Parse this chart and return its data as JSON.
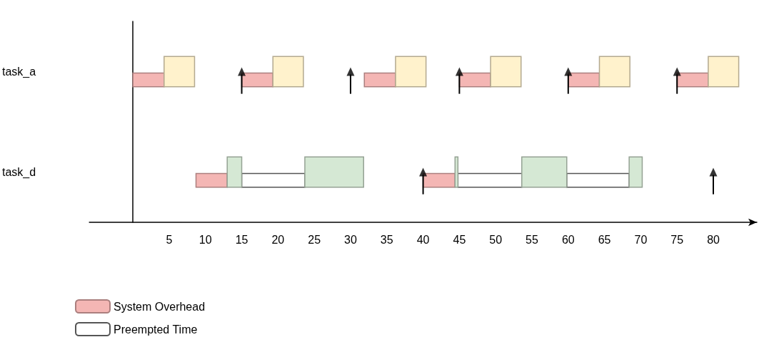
{
  "chart_data": {
    "type": "bar",
    "orientation": "horizontal",
    "categories": [
      "task_a",
      "task_d"
    ],
    "series": [
      {
        "name": "System Overhead",
        "color": "#f4b6b4",
        "base": [
          0,
          8.7
        ],
        "values": [
          4.3,
          4.3
        ]
      },
      {
        "color": "#f4b6b4",
        "base": [
          15,
          40
        ],
        "values": [
          4.3,
          4.4
        ]
      },
      {
        "color": "#f4b6b4",
        "base": [
          31.9,
          null
        ],
        "values": [
          4.3,
          null
        ]
      },
      {
        "color": "#f4b6b4",
        "base": [
          45,
          null
        ],
        "values": [
          4.3,
          null
        ]
      },
      {
        "color": "#f4b6b4",
        "base": [
          60,
          null
        ],
        "values": [
          4.3,
          null
        ]
      },
      {
        "color": "#f4b6b4",
        "base": [
          75,
          null
        ],
        "values": [
          4.3,
          null
        ]
      },
      {
        "name": "Preempted Time",
        "color": "#ffffff",
        "base": [
          null,
          15
        ],
        "values": [
          null,
          8.7
        ]
      },
      {
        "color": "#ffffff",
        "base": [
          null,
          44.8
        ],
        "values": [
          null,
          8.8
        ]
      },
      {
        "color": "#ffffff",
        "base": [
          null,
          59.8
        ],
        "values": [
          null,
          8.6
        ]
      },
      {
        "color": "#fff2cc",
        "base": [
          4.3,
          null
        ],
        "values": [
          4.2,
          null
        ]
      },
      {
        "color": "#fff2cc",
        "base": [
          19.3,
          null
        ],
        "values": [
          4.2,
          null
        ]
      },
      {
        "color": "#fff2cc",
        "base": [
          36.2,
          null
        ],
        "values": [
          4.2,
          null
        ]
      },
      {
        "color": "#fff2cc",
        "base": [
          49.3,
          null
        ],
        "values": [
          4.2,
          null
        ]
      },
      {
        "color": "#fff2cc",
        "base": [
          64.3,
          null
        ],
        "values": [
          4.2,
          null
        ]
      },
      {
        "color": "#fff2cc",
        "base": [
          79.3,
          null
        ],
        "values": [
          4.2,
          null
        ]
      },
      {
        "color": "#d5e8d4",
        "base": [
          null,
          13
        ],
        "values": [
          null,
          2
        ]
      },
      {
        "color": "#d5e8d4",
        "base": [
          null,
          23.7
        ],
        "values": [
          null,
          8.1
        ]
      },
      {
        "color": "#d5e8d4",
        "base": [
          null,
          44.4
        ],
        "values": [
          null,
          0.4
        ]
      },
      {
        "color": "#d5e8d4",
        "base": [
          null,
          53.6
        ],
        "values": [
          null,
          6.2
        ]
      },
      {
        "color": "#d5e8d4",
        "base": [
          null,
          68.4
        ],
        "values": [
          null,
          1.8
        ]
      },
      {
        "type": "scatter",
        "color": "#000000",
        "values": [
          15,
          40
        ]
      },
      {
        "type": "scatter",
        "color": "#000000",
        "values": [
          30,
          80
        ]
      },
      {
        "type": "scatter",
        "color": "#000000",
        "values": [
          45,
          null
        ]
      },
      {
        "type": "scatter",
        "color": "#000000",
        "values": [
          60,
          null
        ]
      },
      {
        "type": "scatter",
        "color": "#000000",
        "values": [
          75,
          null
        ]
      }
    ],
    "xlim": [
      -6,
      86
    ],
    "xticks": [
      5,
      10,
      15,
      20,
      25,
      30,
      35,
      40,
      45,
      50,
      55,
      60,
      65,
      70,
      75,
      80
    ],
    "grid": false,
    "legend": "bottom left"
  }
}
